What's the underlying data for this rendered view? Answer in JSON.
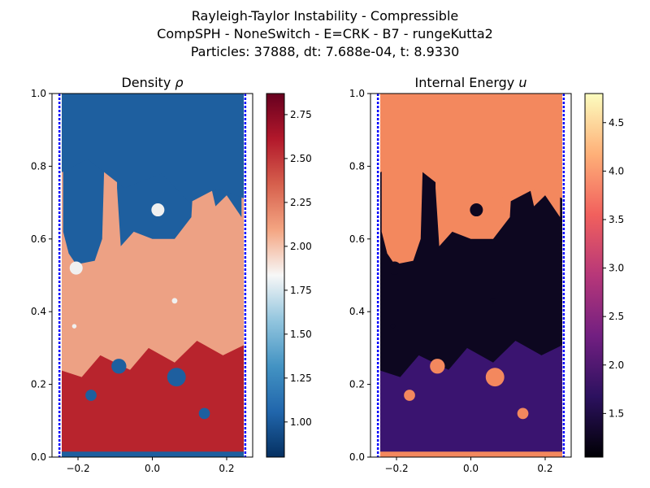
{
  "figure": {
    "title_lines": [
      "Rayleigh-Taylor Instability - Compressible",
      "CompSPH - NoneSwitch - E=CRK - B7 - rungeKutta2",
      "Particles: 37888, dt: 7.688e-04, t: 8.9330"
    ]
  },
  "chart_data": [
    {
      "type": "heatmap",
      "title": "Density ρ",
      "title_base": "Density ",
      "title_symbol": "ρ",
      "xlabel": "",
      "ylabel": "",
      "xlim": [
        -0.27,
        0.27
      ],
      "ylim": [
        0.0,
        1.0
      ],
      "xticks": [
        -0.2,
        0.0,
        0.2
      ],
      "xtick_labels": [
        "−0.2",
        "0.0",
        "0.2"
      ],
      "yticks": [
        0.0,
        0.2,
        0.4,
        0.6,
        0.8,
        1.0
      ],
      "ytick_labels": [
        "0.0",
        "0.2",
        "0.4",
        "0.6",
        "0.8",
        "1.0"
      ],
      "domain_x": [
        -0.25,
        0.25
      ],
      "grid": false,
      "colormap": "RdBu_r",
      "colorbar": {
        "range": [
          0.8,
          2.87
        ],
        "ticks": [
          1.0,
          1.25,
          1.5,
          1.75,
          2.0,
          2.25,
          2.5,
          2.75
        ],
        "tick_labels": [
          "1.00",
          "1.25",
          "1.50",
          "1.75",
          "2.00",
          "2.25",
          "2.50",
          "2.75"
        ],
        "stops": [
          "#053061",
          "#2166ac",
          "#4393c3",
          "#92c5de",
          "#f7f7f7",
          "#f4a582",
          "#d6604d",
          "#b2182b",
          "#67001f"
        ]
      },
      "heavy_fluid_color": "#eda184",
      "light_fluid_color": "#1e5f9f",
      "mixed_zone_color": "#b8242d",
      "boundary_color": "#0000ff"
    },
    {
      "type": "heatmap",
      "title": "Internal Energy u",
      "title_base": "Internal Energy ",
      "title_symbol": "u",
      "xlabel": "",
      "ylabel": "",
      "xlim": [
        -0.27,
        0.27
      ],
      "ylim": [
        0.0,
        1.0
      ],
      "xticks": [
        -0.2,
        0.0,
        0.2
      ],
      "xtick_labels": [
        "−0.2",
        "0.0",
        "0.2"
      ],
      "yticks": [
        0.0,
        0.2,
        0.4,
        0.6,
        0.8,
        1.0
      ],
      "ytick_labels": [
        "0.0",
        "0.2",
        "0.4",
        "0.6",
        "0.8",
        "1.0"
      ],
      "domain_x": [
        -0.25,
        0.25
      ],
      "grid": false,
      "colormap": "magma",
      "colorbar": {
        "range": [
          1.05,
          4.8
        ],
        "ticks": [
          1.5,
          2.0,
          2.5,
          3.0,
          3.5,
          4.0,
          4.5
        ],
        "tick_labels": [
          "1.5",
          "2.0",
          "2.5",
          "3.0",
          "3.5",
          "4.0",
          "4.5"
        ],
        "stops": [
          "#000004",
          "#2c115f",
          "#721f81",
          "#b73779",
          "#f1605d",
          "#feb078",
          "#fcfdbf"
        ]
      },
      "heavy_fluid_color": "#0d0720",
      "light_fluid_color": "#f3885e",
      "mixed_zone_color": "#3a1470",
      "boundary_color": "#0000ff"
    }
  ]
}
